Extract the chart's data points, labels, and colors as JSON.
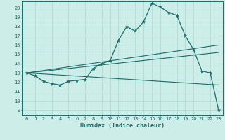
{
  "xlabel": "Humidex (Indice chaleur)",
  "bg_color": "#cdeee8",
  "line_color": "#1a6b6b",
  "grid_color": "#a8d8d0",
  "xlim": [
    -0.5,
    23.5
  ],
  "ylim": [
    8.5,
    20.7
  ],
  "yticks": [
    9,
    10,
    11,
    12,
    13,
    14,
    15,
    16,
    17,
    18,
    19,
    20
  ],
  "xticks": [
    0,
    1,
    2,
    3,
    4,
    5,
    6,
    7,
    8,
    9,
    10,
    11,
    12,
    13,
    14,
    15,
    16,
    17,
    18,
    19,
    20,
    21,
    22,
    23
  ],
  "main_line_x": [
    0,
    1,
    2,
    3,
    4,
    5,
    6,
    7,
    8,
    9,
    10,
    11,
    12,
    13,
    14,
    15,
    16,
    17,
    18,
    19,
    20,
    21,
    22,
    23
  ],
  "main_line_y": [
    13.0,
    12.7,
    12.1,
    11.85,
    11.7,
    12.1,
    12.2,
    12.3,
    13.5,
    14.0,
    14.3,
    16.5,
    18.0,
    17.5,
    18.5,
    20.5,
    20.1,
    19.5,
    19.2,
    17.0,
    15.5,
    13.2,
    13.0,
    9.0
  ],
  "line2_x": [
    0,
    23
  ],
  "line2_y": [
    13.0,
    16.0
  ],
  "line3_x": [
    0,
    23
  ],
  "line3_y": [
    13.0,
    15.2
  ],
  "line4_x": [
    0,
    23
  ],
  "line4_y": [
    13.0,
    11.7
  ]
}
